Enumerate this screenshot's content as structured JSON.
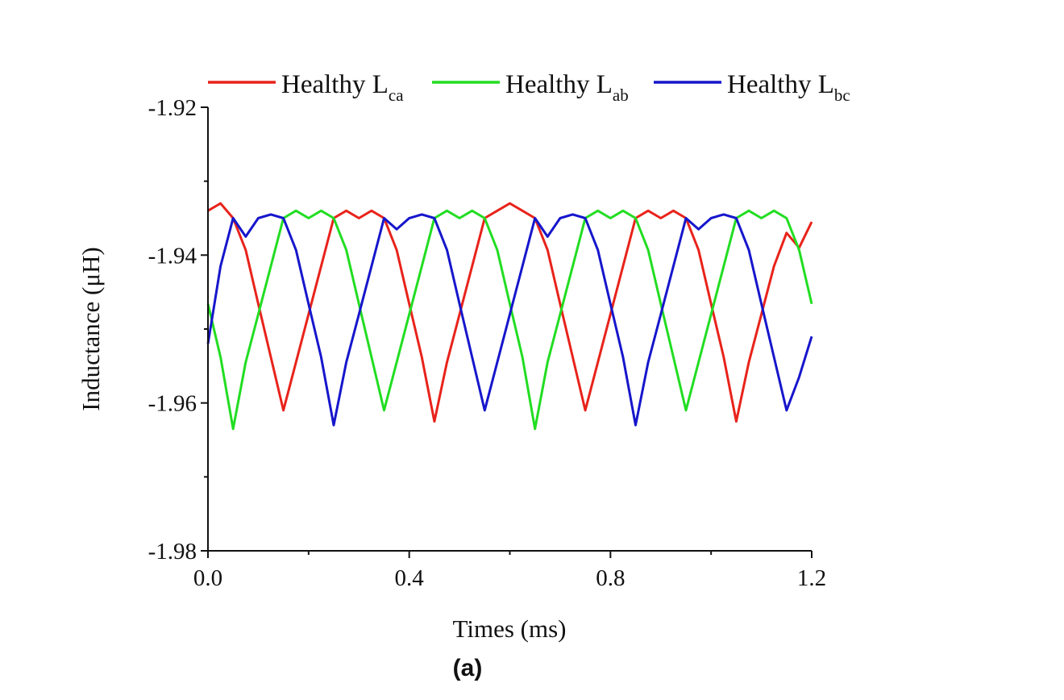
{
  "chart_data": {
    "type": "line",
    "title": "",
    "xlabel": "Times (ms)",
    "ylabel": "Inductance (μH)",
    "xlim": [
      0.0,
      1.2
    ],
    "ylim": [
      -1.98,
      -1.92
    ],
    "xticks": [
      "0.0",
      "0.4",
      "0.8",
      "1.2"
    ],
    "xtick_values": [
      0.0,
      0.4,
      0.8,
      1.2
    ],
    "xminor": [
      0.2,
      0.6,
      1.0
    ],
    "yticks": [
      "-1.92",
      "-1.94",
      "-1.96",
      "-1.98"
    ],
    "ytick_values": [
      -1.92,
      -1.94,
      -1.96,
      -1.98
    ],
    "yminor": [
      -1.93,
      -1.95,
      -1.97
    ],
    "grid": false,
    "legend_position": "top",
    "x": [
      0,
      0.025,
      0.05,
      0.075,
      0.1,
      0.125,
      0.15,
      0.175,
      0.2,
      0.225,
      0.25,
      0.275,
      0.3,
      0.325,
      0.35,
      0.375,
      0.4,
      0.425,
      0.45,
      0.475,
      0.5,
      0.525,
      0.55,
      0.575,
      0.6,
      0.625,
      0.65,
      0.675,
      0.7,
      0.725,
      0.75,
      0.775,
      0.8,
      0.825,
      0.85,
      0.875,
      0.9,
      0.925,
      0.95,
      0.975,
      1.0,
      1.025,
      1.05,
      1.075,
      1.1,
      1.125,
      1.15,
      1.175,
      1.2
    ],
    "series": [
      {
        "name": "Healthy L",
        "subscript": "ca",
        "color": "#e8231b",
        "values": [
          -1.934,
          -1.933,
          -1.935,
          -1.9393,
          -1.9466,
          -1.9538,
          -1.961,
          -1.9545,
          -1.948,
          -1.9415,
          -1.935,
          -1.934,
          -1.935,
          -1.934,
          -1.935,
          -1.9393,
          -1.9466,
          -1.9538,
          -1.9625,
          -1.9545,
          -1.948,
          -1.9415,
          -1.935,
          -1.934,
          -1.933,
          -1.934,
          -1.935,
          -1.9393,
          -1.9466,
          -1.9538,
          -1.961,
          -1.9545,
          -1.948,
          -1.9415,
          -1.935,
          -1.934,
          -1.935,
          -1.934,
          -1.935,
          -1.9393,
          -1.9466,
          -1.9538,
          -1.9625,
          -1.9545,
          -1.948,
          -1.9415,
          -1.937,
          -1.939,
          -1.9355
        ]
      },
      {
        "name": "Healthy L",
        "subscript": "ab",
        "color": "#22dd22",
        "values": [
          -1.9466,
          -1.9538,
          -1.9635,
          -1.9545,
          -1.948,
          -1.9415,
          -1.935,
          -1.934,
          -1.935,
          -1.934,
          -1.935,
          -1.9393,
          -1.9466,
          -1.9538,
          -1.961,
          -1.9545,
          -1.948,
          -1.9415,
          -1.935,
          -1.934,
          -1.935,
          -1.934,
          -1.935,
          -1.9393,
          -1.9466,
          -1.9538,
          -1.9635,
          -1.9545,
          -1.948,
          -1.9415,
          -1.935,
          -1.934,
          -1.935,
          -1.934,
          -1.935,
          -1.9393,
          -1.9466,
          -1.9538,
          -1.961,
          -1.9545,
          -1.948,
          -1.9415,
          -1.935,
          -1.934,
          -1.935,
          -1.934,
          -1.935,
          -1.9393,
          -1.9466
        ]
      },
      {
        "name": "Healthy L",
        "subscript": "bc",
        "color": "#1616cc",
        "values": [
          -1.952,
          -1.9415,
          -1.935,
          -1.9375,
          -1.935,
          -1.9345,
          -1.935,
          -1.9393,
          -1.9466,
          -1.9538,
          -1.963,
          -1.9545,
          -1.948,
          -1.9415,
          -1.935,
          -1.9365,
          -1.935,
          -1.9345,
          -1.935,
          -1.9393,
          -1.9466,
          -1.9538,
          -1.961,
          -1.9545,
          -1.948,
          -1.9415,
          -1.935,
          -1.9375,
          -1.935,
          -1.9345,
          -1.935,
          -1.9393,
          -1.9466,
          -1.9538,
          -1.963,
          -1.9545,
          -1.948,
          -1.9415,
          -1.935,
          -1.9365,
          -1.935,
          -1.9345,
          -1.935,
          -1.9393,
          -1.9466,
          -1.9538,
          -1.961,
          -1.9565,
          -1.951
        ]
      }
    ]
  },
  "caption": "(a)"
}
